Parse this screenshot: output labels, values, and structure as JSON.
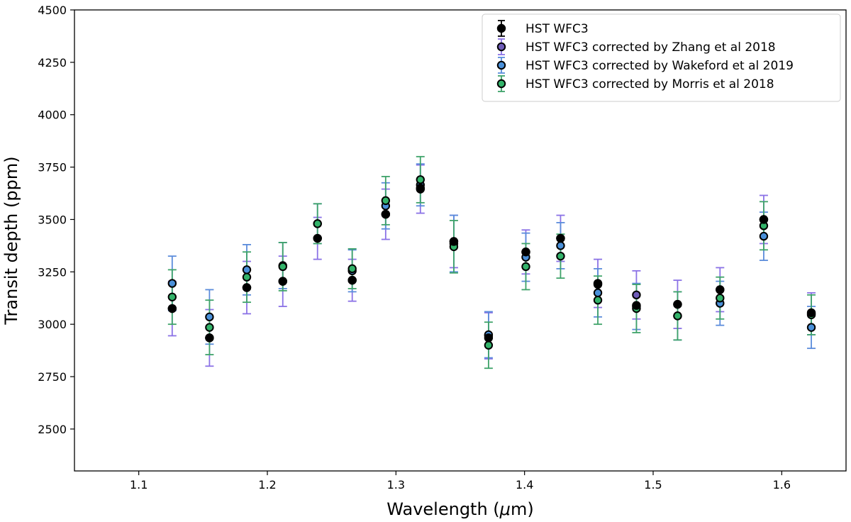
{
  "chart_data": {
    "type": "scatter",
    "title": "",
    "xlabel": "Wavelength (μm)",
    "xlabel_prefix": "Wavelength (",
    "xlabel_mu": "μ",
    "xlabel_suffix": "m)",
    "ylabel": "Transit depth (ppm)",
    "xlim": [
      1.05,
      1.65
    ],
    "ylim": [
      2300,
      4500
    ],
    "x_ticks": [
      1.1,
      1.2,
      1.3,
      1.4,
      1.5,
      1.6
    ],
    "x_tick_labels": [
      "1.1",
      "1.2",
      "1.3",
      "1.4",
      "1.5",
      "1.6"
    ],
    "y_ticks": [
      2500,
      2750,
      3000,
      3250,
      3500,
      3750,
      4000,
      4250,
      4500
    ],
    "y_tick_labels": [
      "2500",
      "2750",
      "3000",
      "3250",
      "3500",
      "3750",
      "4000",
      "4250",
      "4500"
    ],
    "grid": false,
    "legend_position": "top-right",
    "x": [
      1.126,
      1.155,
      1.184,
      1.212,
      1.239,
      1.266,
      1.292,
      1.319,
      1.345,
      1.372,
      1.401,
      1.428,
      1.457,
      1.487,
      1.519,
      1.552,
      1.586,
      1.623
    ],
    "series": [
      {
        "name": "HST WFC3",
        "color": "#000000",
        "fill": "#000000",
        "values": [
          3075,
          2935,
          3175,
          3205,
          3410,
          3210,
          3525,
          3650,
          3395,
          2935,
          3345,
          3410,
          3190,
          3090,
          3095,
          3165,
          3500,
          3055
        ],
        "errors": [
          0,
          0,
          0,
          0,
          0,
          0,
          0,
          0,
          0,
          0,
          0,
          0,
          0,
          0,
          0,
          0,
          0,
          0
        ]
      },
      {
        "name": "HST WFC3 corrected by Zhang et al 2018",
        "color": "#8b72e6",
        "fill": "#6f5cb8",
        "values": [
          3075,
          2935,
          3175,
          3205,
          3410,
          3210,
          3525,
          3645,
          3395,
          2945,
          3345,
          3410,
          3195,
          3140,
          3095,
          3165,
          3500,
          3050
        ],
        "errors": [
          130,
          135,
          125,
          120,
          100,
          100,
          120,
          115,
          125,
          110,
          105,
          110,
          115,
          115,
          115,
          105,
          115,
          100
        ]
      },
      {
        "name": "HST WFC3 corrected by Wakeford et al 2019",
        "color": "#5b8cdb",
        "fill": "#4a90d9",
        "values": [
          3195,
          3035,
          3260,
          3280,
          3480,
          3255,
          3565,
          3665,
          3385,
          2950,
          3320,
          3375,
          3150,
          3085,
          3040,
          3100,
          3420,
          2985
        ],
        "errors": [
          130,
          130,
          120,
          110,
          95,
          100,
          110,
          100,
          135,
          110,
          115,
          110,
          115,
          110,
          115,
          105,
          115,
          100
        ]
      },
      {
        "name": "HST WFC3 corrected by Morris et al 2018",
        "color": "#3fa36a",
        "fill": "#33b36a",
        "values": [
          3130,
          2985,
          3225,
          3275,
          3480,
          3265,
          3590,
          3690,
          3370,
          2900,
          3275,
          3325,
          3115,
          3075,
          3040,
          3125,
          3470,
          3045
        ],
        "errors": [
          130,
          130,
          120,
          115,
          95,
          95,
          115,
          110,
          125,
          110,
          110,
          105,
          115,
          115,
          115,
          100,
          115,
          95
        ]
      }
    ]
  }
}
